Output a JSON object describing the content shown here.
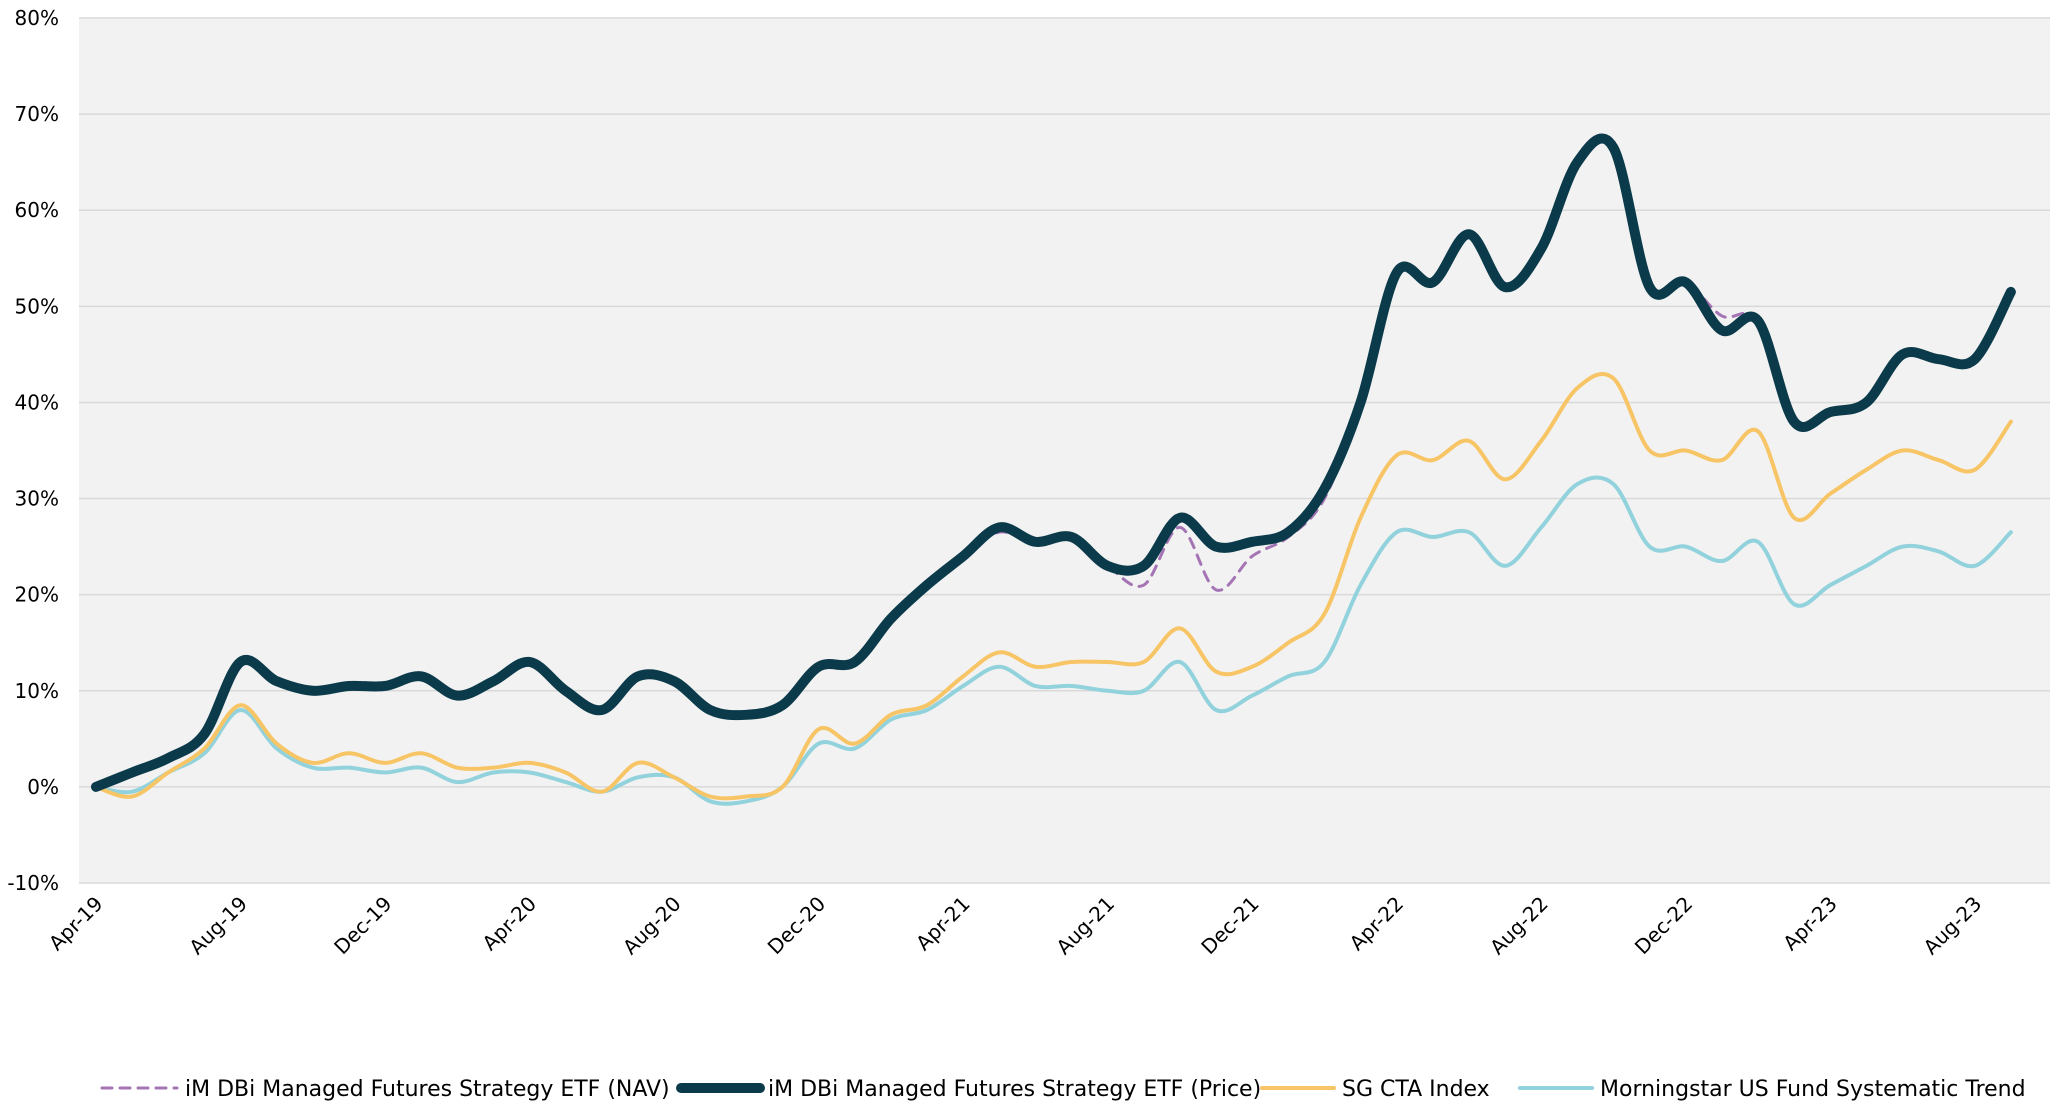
{
  "chart_data": {
    "type": "line",
    "categories": [
      "Apr-19",
      null,
      null,
      null,
      "Aug-19",
      null,
      null,
      null,
      "Dec-19",
      null,
      null,
      null,
      "Apr-20",
      null,
      null,
      null,
      "Aug-20",
      null,
      null,
      null,
      "Dec-20",
      null,
      null,
      null,
      "Apr-21",
      null,
      null,
      null,
      "Aug-21",
      null,
      null,
      null,
      "Dec-21",
      null,
      null,
      null,
      "Apr-22",
      null,
      null,
      null,
      "Aug-22",
      null,
      null,
      null,
      "Dec-22",
      null,
      null,
      null,
      "Apr-23",
      null,
      null,
      null,
      "Aug-23",
      null
    ],
    "series": [
      {
        "name": "iM DBi Managed Futures Strategy ETF (NAV)",
        "color": "#a474b4",
        "dashed": true,
        "width": 3,
        "values": [
          0,
          1.5,
          3,
          5.5,
          13,
          11,
          10,
          10.5,
          10.5,
          11.5,
          9.5,
          11,
          13,
          10,
          8,
          11.5,
          11,
          8,
          7.5,
          8.5,
          12.5,
          13,
          17.5,
          21,
          24,
          26.5,
          25.5,
          26,
          23,
          21,
          27,
          20.5,
          24,
          26,
          30,
          40,
          53.5,
          52.5,
          57.5,
          52,
          56,
          65,
          66.5,
          52,
          52.5,
          49,
          48.5,
          38,
          39,
          40,
          45,
          44.5,
          44.5,
          51.5
        ]
      },
      {
        "name": "iM DBi Managed Futures Strategy ETF (Price)",
        "color": "#0b3a4a",
        "dashed": false,
        "width": 10,
        "values": [
          0,
          1.5,
          3,
          5.5,
          13,
          11,
          10,
          10.5,
          10.5,
          11.5,
          9.5,
          11,
          13,
          10,
          8,
          11.5,
          11,
          8,
          7.5,
          8.5,
          12.5,
          13,
          17.5,
          21,
          24,
          27,
          25.5,
          26,
          23,
          23,
          28,
          25,
          25.5,
          26.5,
          31,
          40,
          53.5,
          52.5,
          57.5,
          52,
          56,
          65,
          66.5,
          52,
          52.5,
          47.5,
          48.5,
          38,
          39,
          40,
          45,
          44.5,
          44.5,
          51.5
        ]
      },
      {
        "name": "SG CTA Index",
        "color": "#f7c566",
        "dashed": false,
        "width": 4,
        "values": [
          0,
          -1,
          1.5,
          4,
          8.5,
          4.5,
          2.5,
          3.5,
          2.5,
          3.5,
          2,
          2,
          2.5,
          1.5,
          -0.5,
          2.5,
          1,
          -1,
          -1,
          0,
          6,
          4.5,
          7.5,
          8.5,
          11.5,
          14,
          12.5,
          13,
          13,
          13,
          16.5,
          12,
          12.5,
          15,
          18,
          28,
          34.5,
          34,
          36,
          32,
          36,
          41.5,
          42.5,
          35,
          35,
          34,
          37,
          28,
          30.5,
          33,
          35,
          34,
          33,
          38
        ]
      },
      {
        "name": "Morningstar US Fund Systematic Trend",
        "color": "#92d2dc",
        "dashed": false,
        "width": 4,
        "values": [
          0,
          -0.5,
          1.5,
          3.5,
          8,
          4,
          2,
          2,
          1.5,
          2,
          0.5,
          1.5,
          1.5,
          0.5,
          -0.5,
          1,
          1,
          -1.5,
          -1.5,
          0,
          4.5,
          4,
          7,
          8,
          10.5,
          12.5,
          10.5,
          10.5,
          10,
          10,
          13,
          8,
          9.5,
          11.5,
          13,
          21,
          26.5,
          26,
          26.5,
          23,
          27,
          31.5,
          31.5,
          25,
          25,
          23.5,
          25.5,
          19,
          21,
          23,
          25,
          24.5,
          23,
          26.5
        ]
      }
    ],
    "ylim": [
      -10,
      80
    ],
    "yticks": [
      {
        "value": -10,
        "label": "-10%"
      },
      {
        "value": 0,
        "label": "0%"
      },
      {
        "value": 10,
        "label": "10%"
      },
      {
        "value": 20,
        "label": "20%"
      },
      {
        "value": 30,
        "label": "30%"
      },
      {
        "value": 40,
        "label": "40%"
      },
      {
        "value": 50,
        "label": "50%"
      },
      {
        "value": 60,
        "label": "60%"
      },
      {
        "value": 70,
        "label": "70%"
      },
      {
        "value": 80,
        "label": "80%"
      }
    ],
    "grid": true,
    "legend": "bottom"
  }
}
